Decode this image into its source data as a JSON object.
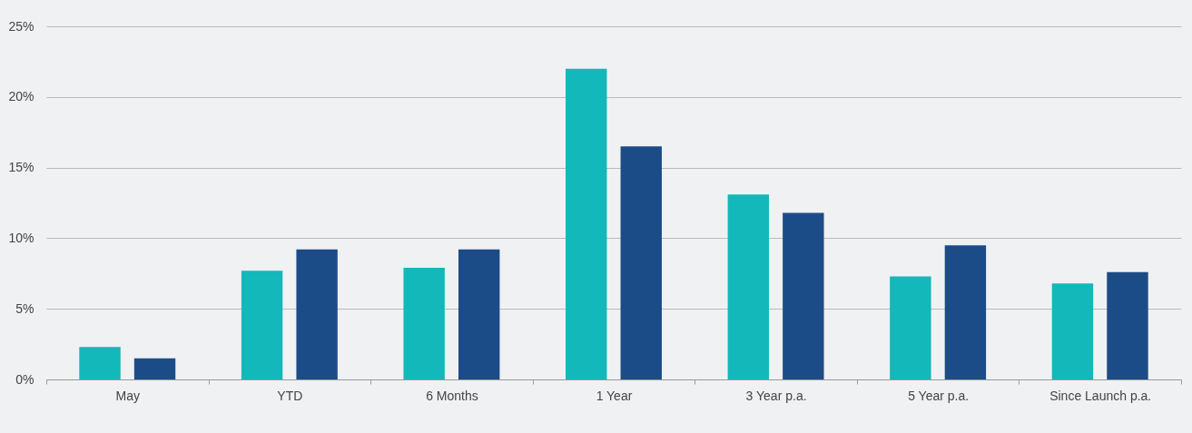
{
  "chart_data": {
    "type": "bar",
    "categories": [
      "May",
      "YTD",
      "6 Months",
      "1 Year",
      "3 Year p.a.",
      "5 Year p.a.",
      "Since Launch p.a."
    ],
    "series": [
      {
        "color": "#12b8ba",
        "values": [
          2.3,
          7.7,
          7.9,
          22.0,
          13.1,
          7.3,
          6.8
        ]
      },
      {
        "color": "#1b4c87",
        "values": [
          1.5,
          9.2,
          9.2,
          16.5,
          11.8,
          9.5,
          7.6
        ]
      }
    ],
    "ylim": [
      0,
      25
    ],
    "yticks": [
      {
        "value": 0,
        "label": "0%"
      },
      {
        "value": 5,
        "label": "5%"
      },
      {
        "value": 10,
        "label": "10%"
      },
      {
        "value": 15,
        "label": "15%"
      },
      {
        "value": 20,
        "label": "20%"
      },
      {
        "value": 25,
        "label": "25%"
      }
    ],
    "grid": "y",
    "legend": false
  }
}
